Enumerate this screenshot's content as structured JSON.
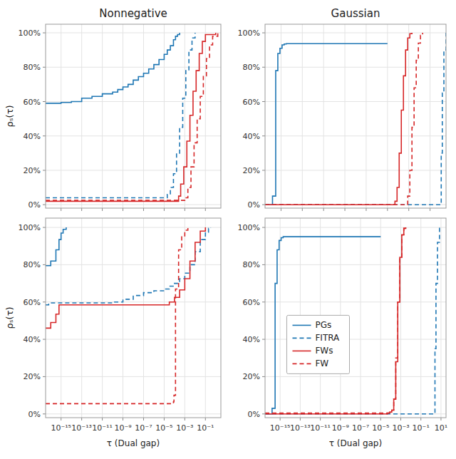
{
  "chart_data": [
    {
      "type": "step",
      "title": "Nonnegative",
      "y_label": "ρₛ(τ)",
      "log": "x",
      "grid": true,
      "tick_labels": "y",
      "xlim": [
        3.1622776601683796e-17,
        3.1622776601683795
      ],
      "ylim": [
        -0.02,
        1.05
      ],
      "xticks": [
        {
          "value": 1e-15,
          "label": "10⁻¹⁵"
        },
        {
          "value": 1e-13,
          "label": "10⁻¹³"
        },
        {
          "value": 1e-11,
          "label": "10⁻¹¹"
        },
        {
          "value": 1e-09,
          "label": "10⁻⁹"
        },
        {
          "value": 1e-07,
          "label": "10⁻⁷"
        },
        {
          "value": 1e-05,
          "label": "10⁻⁵"
        },
        {
          "value": 0.001,
          "label": "10⁻³"
        },
        {
          "value": 0.1,
          "label": "10⁻¹"
        }
      ],
      "yticks": [
        {
          "value": 0,
          "label": "0%"
        },
        {
          "value": 0.2,
          "label": "20%"
        },
        {
          "value": 0.4,
          "label": "40%"
        },
        {
          "value": 0.6,
          "label": "60%"
        },
        {
          "value": 0.8,
          "label": "80%"
        },
        {
          "value": 1.0,
          "label": "100%"
        }
      ],
      "series": [
        {
          "name": "PGs",
          "color": "#1f77b4",
          "line_style": "solid",
          "x": [
            3.1622776601683796e-17,
            1e-15,
            1e-14,
            1e-13,
            1e-12,
            1e-11,
            1e-10,
            3.1622776601683795e-10,
            1e-09,
            3.1622776601683795e-09,
            1e-08,
            3.162277660168379e-08,
            1e-07,
            3.1622776601683797e-07,
            1e-06,
            3.1622776601683796e-06,
            1e-05,
            1.9952623149688796e-05,
            3.981071705534972e-05,
            7.943282347242815e-05,
            0.00012589254117941672,
            0.00019952623149688796,
            0.00031622776601683794
          ],
          "values": [
            0.59,
            0.595,
            0.6,
            0.62,
            0.63,
            0.645,
            0.655,
            0.67,
            0.685,
            0.7,
            0.725,
            0.745,
            0.765,
            0.79,
            0.815,
            0.845,
            0.875,
            0.9,
            0.925,
            0.96,
            0.98,
            0.99,
            1.0
          ]
        },
        {
          "name": "FITRA",
          "color": "#1f77b4",
          "line_style": "dashed",
          "x": [
            3.1622776601683796e-17,
            1e-05,
            1.9952623149688796e-05,
            3.981071705534972e-05,
            7.943282347242815e-05,
            0.00015848931924611136,
            0.00031622776601683794,
            0.0006309573444801933,
            0.0012589254117941673,
            0.00251188643150958,
            0.005011872336272722,
            0.01
          ],
          "values": [
            0.04,
            0.04,
            0.06,
            0.1,
            0.18,
            0.3,
            0.45,
            0.62,
            0.78,
            0.9,
            0.97,
            1.0
          ]
        },
        {
          "name": "FWs",
          "color": "#d62728",
          "line_style": "solid",
          "x": [
            3.1622776601683796e-17,
            0.00015848931924611136,
            0.000251188643150958,
            0.0003981071705534972,
            0.0007943282347242815,
            0.0015848931924611136,
            0.0031622776601683794,
            0.006309573444801933,
            0.012589254117941673,
            0.0251188643150958,
            0.05011872336272722,
            0.1,
            1
          ],
          "values": [
            0.02,
            0.02,
            0.05,
            0.12,
            0.22,
            0.37,
            0.52,
            0.66,
            0.78,
            0.88,
            0.95,
            0.99,
            1.0
          ]
        },
        {
          "name": "FW",
          "color": "#d62728",
          "line_style": "dashed",
          "x": [
            3.1622776601683796e-17,
            0.0006309573444801933,
            0.001,
            0.0019952623149688794,
            0.003981071705534972,
            0.007943282347242816,
            0.015848931924611134,
            0.0316227766016838,
            0.06309573444801933,
            0.12589254117941673,
            0.251188643150958,
            0.5011872336272722,
            1.5848931924611136
          ],
          "values": [
            0.025,
            0.025,
            0.04,
            0.1,
            0.22,
            0.36,
            0.5,
            0.63,
            0.75,
            0.85,
            0.93,
            0.98,
            1.0
          ]
        }
      ]
    },
    {
      "type": "step",
      "title": "Gaussian",
      "log": "x",
      "grid": true,
      "tick_labels": "y",
      "xlim": [
        3.1622776601683796e-17,
        3.1622776601683795
      ],
      "ylim": [
        -0.02,
        1.05
      ],
      "xticks": [
        {
          "value": 1e-15,
          "label": "10⁻¹⁵"
        },
        {
          "value": 1e-13,
          "label": "10⁻¹³"
        },
        {
          "value": 1e-11,
          "label": "10⁻¹¹"
        },
        {
          "value": 1e-09,
          "label": "10⁻⁹"
        },
        {
          "value": 1e-07,
          "label": "10⁻⁷"
        },
        {
          "value": 1e-05,
          "label": "10⁻⁵"
        },
        {
          "value": 0.001,
          "label": "10⁻³"
        },
        {
          "value": 0.1,
          "label": "10⁻¹"
        }
      ],
      "yticks": [
        {
          "value": 0,
          "label": "0%"
        },
        {
          "value": 0.2,
          "label": "20%"
        },
        {
          "value": 0.4,
          "label": "40%"
        },
        {
          "value": 0.6,
          "label": "60%"
        },
        {
          "value": 0.8,
          "label": "80%"
        },
        {
          "value": 1.0,
          "label": "100%"
        }
      ],
      "series": [
        {
          "name": "PGs",
          "color": "#1f77b4",
          "line_style": "solid",
          "x": [
            3.1622776601683796e-17,
            1.5848931924611136e-16,
            3.1622776601683793e-16,
            5.011872336272722e-16,
            7.943282347242815e-16,
            1.2589254117941673e-15,
            1.9952623149688794e-15,
            3.1622776601683794e-15,
            1e-05
          ],
          "values": [
            0.0,
            0.05,
            0.78,
            0.88,
            0.91,
            0.93,
            0.935,
            0.937,
            0.937
          ]
        },
        {
          "name": "FITRA",
          "color": "#1f77b4",
          "line_style": "dashed",
          "x": [
            3.1622776601683796e-17,
            1,
            1.1220184543019633,
            1.4125375446227544,
            1.9952623149688795,
            3.1622776601683795
          ],
          "values": [
            0.0,
            0.0,
            0.3,
            0.65,
            0.9,
            1.0
          ]
        },
        {
          "name": "FWs",
          "color": "#d62728",
          "line_style": "solid",
          "x": [
            3.1622776601683796e-17,
            3.1622776601683795e-05,
            5.011872336272722e-05,
            7.943282347242815e-05,
            0.00012589254117941672,
            0.00019952623149688796,
            0.00031622776601683794,
            0.0005011872336272722,
            0.0007943282347242815,
            0.0012589254117941673,
            0.0019952623149688794
          ],
          "values": [
            0.0,
            0.0,
            0.02,
            0.1,
            0.3,
            0.55,
            0.75,
            0.9,
            0.97,
            0.995,
            1.0
          ]
        },
        {
          "name": "FW",
          "color": "#d62728",
          "line_style": "dashed",
          "x": [
            3.1622776601683796e-17,
            0.0005011872336272722,
            0.0007943282347242815,
            0.0012589254117941673,
            0.0019952623149688794,
            0.0031622776601683794,
            0.005011872336272722,
            0.007943282347242816,
            0.012589254117941673,
            0.019952623149688795
          ],
          "values": [
            0.0,
            0.0,
            0.05,
            0.2,
            0.45,
            0.68,
            0.84,
            0.94,
            0.985,
            1.0
          ]
        }
      ]
    },
    {
      "type": "step",
      "y_label": "ρₛ(τ)",
      "x_label": "τ (Dual gap)",
      "log": "x",
      "grid": true,
      "xlim": [
        3.1622776601683796e-17,
        3.1622776601683795
      ],
      "ylim": [
        -0.02,
        1.05
      ],
      "xticks": [
        {
          "value": 1e-15,
          "label": "10⁻¹⁵"
        },
        {
          "value": 1e-13,
          "label": "10⁻¹³"
        },
        {
          "value": 1e-11,
          "label": "10⁻¹¹"
        },
        {
          "value": 1e-09,
          "label": "10⁻⁹"
        },
        {
          "value": 1e-07,
          "label": "10⁻⁷"
        },
        {
          "value": 1e-05,
          "label": "10⁻⁵"
        },
        {
          "value": 0.001,
          "label": "10⁻³"
        },
        {
          "value": 0.1,
          "label": "10⁻¹"
        }
      ],
      "yticks": [
        {
          "value": 0,
          "label": "0%"
        },
        {
          "value": 0.2,
          "label": "20%"
        },
        {
          "value": 0.4,
          "label": "40%"
        },
        {
          "value": 0.6,
          "label": "60%"
        },
        {
          "value": 0.8,
          "label": "80%"
        },
        {
          "value": 1.0,
          "label": "100%"
        }
      ],
      "series": [
        {
          "name": "PGs",
          "color": "#1f77b4",
          "line_style": "solid",
          "x": [
            3.1622776601683796e-17,
            1e-16,
            3.1622776601683793e-16,
            6.309573444801933e-16,
            1e-15,
            1.5848931924611135e-15,
            3.1622776601683794e-15
          ],
          "values": [
            0.795,
            0.82,
            0.88,
            0.935,
            0.97,
            0.99,
            1.0
          ]
        },
        {
          "name": "FITRA",
          "color": "#1f77b4",
          "line_style": "dashed",
          "x": [
            3.1622776601683796e-17,
            6.309573444801933e-17,
            1e-10,
            1e-09,
            1e-08,
            1e-07,
            1e-06,
            1e-05,
            3.1622776601683795e-05,
            0.0001,
            0.00031622776601683794,
            0.001,
            0.0031622776601683794,
            0.01,
            0.0316227766016838,
            0.1,
            0.19952623149688795,
            0.31622776601683794
          ],
          "values": [
            0.585,
            0.595,
            0.6,
            0.615,
            0.635,
            0.65,
            0.66,
            0.67,
            0.685,
            0.7,
            0.725,
            0.755,
            0.8,
            0.87,
            0.935,
            0.975,
            0.995,
            1.0
          ]
        },
        {
          "name": "FWs",
          "color": "#d62728",
          "line_style": "solid",
          "x": [
            3.1622776601683796e-17,
            1e-16,
            3.1622776601683793e-16,
            6.309573444801933e-16,
            1e-05,
            3.1622776601683795e-05,
            0.0001,
            0.00031622776601683794,
            0.001,
            0.0031622776601683794,
            0.01,
            0.0316227766016838,
            0.1
          ],
          "values": [
            0.46,
            0.49,
            0.535,
            0.585,
            0.585,
            0.6,
            0.625,
            0.665,
            0.725,
            0.82,
            0.92,
            0.98,
            1.0
          ]
        },
        {
          "name": "FW",
          "color": "#d62728",
          "line_style": "dashed",
          "x": [
            3.1622776601683796e-17,
            5.011872336272722e-05,
            7.943282347242815e-05,
            8.912509381337456e-05,
            0.00012589254117941672,
            0.000251188643150958,
            0.0005011872336272722,
            0.001,
            0.0019952623149688794
          ],
          "values": [
            0.055,
            0.055,
            0.065,
            0.1,
            0.67,
            0.88,
            0.955,
            0.985,
            1.0
          ]
        }
      ]
    },
    {
      "type": "step",
      "x_label": "τ (Dual gap)",
      "log": "x",
      "grid": true,
      "legend": "lower left",
      "xlim": [
        3.1622776601683796e-17,
        31.622776601683793
      ],
      "ylim": [
        -0.02,
        1.05
      ],
      "xticks": [
        {
          "value": 1e-15,
          "label": "10⁻¹⁵"
        },
        {
          "value": 1e-13,
          "label": "10⁻¹³"
        },
        {
          "value": 1e-11,
          "label": "10⁻¹¹"
        },
        {
          "value": 1e-09,
          "label": "10⁻⁹"
        },
        {
          "value": 1e-07,
          "label": "10⁻⁷"
        },
        {
          "value": 1e-05,
          "label": "10⁻⁵"
        },
        {
          "value": 0.001,
          "label": "10⁻³"
        },
        {
          "value": 0.1,
          "label": "10⁻¹"
        },
        {
          "value": 10,
          "label": "10¹"
        }
      ],
      "yticks": [
        {
          "value": 0,
          "label": "0%"
        },
        {
          "value": 0.2,
          "label": "20%"
        },
        {
          "value": 0.4,
          "label": "40%"
        },
        {
          "value": 0.6,
          "label": "60%"
        },
        {
          "value": 0.8,
          "label": "80%"
        },
        {
          "value": 1.0,
          "label": "100%"
        }
      ],
      "series": [
        {
          "name": "PGs",
          "color": "#1f77b4",
          "line_style": "solid",
          "x": [
            3.1622776601683796e-17,
            1.5848931924611136e-16,
            3.1622776601683793e-16,
            5.011872336272722e-16,
            7.943282347242815e-16,
            1.2589254117941673e-15,
            1.9952623149688794e-15,
            1e-05
          ],
          "values": [
            0.0,
            0.03,
            0.7,
            0.88,
            0.93,
            0.945,
            0.95,
            0.95
          ]
        },
        {
          "name": "FITRA",
          "color": "#1f77b4",
          "line_style": "dashed",
          "x": [
            3.1622776601683796e-17,
            1.9952623149688795,
            2.51188643150958,
            3.1622776601683795,
            4.466835921509635,
            7.07945784384138
          ],
          "values": [
            0.0,
            0.0,
            0.35,
            0.7,
            0.92,
            1.0
          ]
        },
        {
          "name": "FWs",
          "color": "#d62728",
          "line_style": "solid",
          "x": [
            3.1622776601683796e-17,
            3.1622776601683795e-05,
            5.011872336272722e-05,
            7.943282347242815e-05,
            0.00012589254117941672,
            0.00019952623149688796,
            0.00031622776601683794,
            0.0005011872336272722,
            0.0007943282347242815,
            0.0012589254117941673,
            0.0019952623149688794,
            0.0031622776601683794
          ],
          "values": [
            0.0,
            0.0,
            0.005,
            0.01,
            0.02,
            0.08,
            0.28,
            0.6,
            0.84,
            0.96,
            0.995,
            1.0
          ]
        },
        {
          "name": "FW",
          "color": "#d62728",
          "line_style": "dashed",
          "x": [
            3.1622776601683796e-17,
            5.011872336272722e-05,
            7.943282347242815e-05,
            0.00012589254117941672,
            0.00019952623149688796,
            0.00031622776601683794,
            0.0005011872336272722,
            0.0007943282347242815,
            0.0012589254117941673,
            0.0019952623149688794,
            0.0031622776601683794
          ],
          "values": [
            0.005,
            0.005,
            0.01,
            0.02,
            0.08,
            0.3,
            0.6,
            0.84,
            0.96,
            0.995,
            1.0
          ]
        }
      ]
    }
  ]
}
